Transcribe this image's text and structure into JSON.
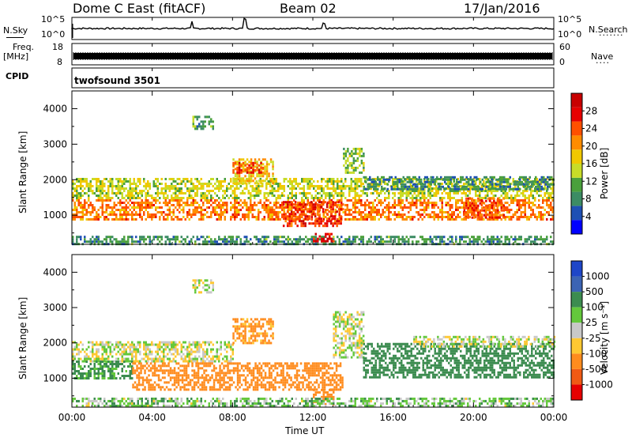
{
  "header": {
    "station": "Dome C East (fitACF)",
    "beam": "Beam 02",
    "date": "17/Jan/2016"
  },
  "top_panels": {
    "nsky_label": "N.Sky",
    "nsky_ticks": [
      "10^5",
      "10^0"
    ],
    "nsearch_label": "N.Search",
    "nsearch_ticks": [
      "10^5",
      "10^0"
    ],
    "freq_label": "Freq.",
    "freq_unit": "[MHz]",
    "freq_ticks": [
      "18",
      "8"
    ],
    "nave_label": "Nave",
    "nave_ticks": [
      "60",
      "0"
    ],
    "cpid_label": "CPID",
    "cpid_value": "twofsound 3501"
  },
  "chart_data": [
    {
      "type": "heatmap",
      "name": "power",
      "ylabel": "Slant Range [km]",
      "ylim": [
        180,
        4500
      ],
      "yticks": [
        "1000",
        "2000",
        "3000",
        "4000"
      ],
      "xlim": [
        0,
        24
      ],
      "colorbar": {
        "label": "Power [dB]",
        "range": [
          0,
          32
        ],
        "ticks": [
          "4",
          "8",
          "12",
          "16",
          "20",
          "24",
          "28"
        ],
        "colors": [
          "#0000ff",
          "#1e50b4",
          "#3c8c64",
          "#4aa03c",
          "#c8dc28",
          "#f0c800",
          "#ff8c00",
          "#ff5000",
          "#e60000",
          "#c80000"
        ]
      },
      "regions": [
        {
          "t0": 0.0,
          "t1": 24.0,
          "r0": 900,
          "r1": 1450,
          "v": 22
        },
        {
          "t0": 0.0,
          "t1": 24.0,
          "r0": 1450,
          "r1": 2050,
          "v": 15
        },
        {
          "t0": 0.0,
          "t1": 24.0,
          "r0": 200,
          "r1": 420,
          "v": 9
        },
        {
          "t0": 8.0,
          "t1": 10.0,
          "r0": 1900,
          "r1": 2600,
          "v": 18
        },
        {
          "t0": 8.0,
          "t1": 9.5,
          "r0": 2200,
          "r1": 2500,
          "v": 26
        },
        {
          "t0": 10.5,
          "t1": 13.5,
          "r0": 700,
          "r1": 1400,
          "v": 26
        },
        {
          "t0": 12.0,
          "t1": 13.0,
          "r0": 250,
          "r1": 500,
          "v": 29
        },
        {
          "t0": 13.5,
          "t1": 14.5,
          "r0": 2200,
          "r1": 2900,
          "v": 13
        },
        {
          "t0": 19.5,
          "t1": 21.5,
          "r0": 900,
          "r1": 1500,
          "v": 24
        },
        {
          "t0": 6.0,
          "t1": 7.0,
          "r0": 3400,
          "r1": 3800,
          "v": 10
        },
        {
          "t0": 14.5,
          "t1": 24.0,
          "r0": 1700,
          "r1": 2100,
          "v": 8
        }
      ]
    },
    {
      "type": "heatmap",
      "name": "velocity",
      "ylabel": "Slant Range [km]",
      "ylim": [
        180,
        4500
      ],
      "yticks": [
        "1000",
        "2000",
        "3000",
        "4000"
      ],
      "xlim": [
        0,
        24
      ],
      "xlabel": "Time UT",
      "xticks": [
        "00:00",
        "04:00",
        "08:00",
        "12:00",
        "16:00",
        "20:00",
        "00:00"
      ],
      "colorbar": {
        "label": "Velocity [m s⁻¹]",
        "ticks": [
          "1000",
          "500",
          "100",
          "25",
          "-25",
          "-100",
          "-500",
          "-1000"
        ],
        "colors": [
          "#1e46c8",
          "#3c64b4",
          "#3c8c50",
          "#64c83c",
          "#c8c8c8",
          "#ffc832",
          "#ff8c1e",
          "#f05a14",
          "#e60000"
        ]
      },
      "regions": [
        {
          "t0": 0.0,
          "t1": 8.0,
          "r0": 1500,
          "r1": 2050,
          "v": 0
        },
        {
          "t0": 0.0,
          "t1": 3.0,
          "r0": 1000,
          "r1": 1500,
          "v": 150
        },
        {
          "t0": 3.0,
          "t1": 13.5,
          "r0": 700,
          "r1": 1450,
          "v": -300
        },
        {
          "t0": 8.0,
          "t1": 10.0,
          "r0": 2000,
          "r1": 2700,
          "v": -150
        },
        {
          "t0": 12.0,
          "t1": 13.0,
          "r0": 250,
          "r1": 700,
          "v": -400
        },
        {
          "t0": 13.0,
          "t1": 14.5,
          "r0": 1600,
          "r1": 2900,
          "v": 0
        },
        {
          "t0": 14.5,
          "t1": 24.0,
          "r0": 1000,
          "r1": 2000,
          "v": 200
        },
        {
          "t0": 0.0,
          "t1": 24.0,
          "r0": 200,
          "r1": 450,
          "v": 60
        },
        {
          "t0": 17.0,
          "t1": 24.0,
          "r0": 1900,
          "r1": 2200,
          "v": 0
        },
        {
          "t0": 6.0,
          "t1": 7.0,
          "r0": 3400,
          "r1": 3800,
          "v": 0
        }
      ]
    }
  ]
}
